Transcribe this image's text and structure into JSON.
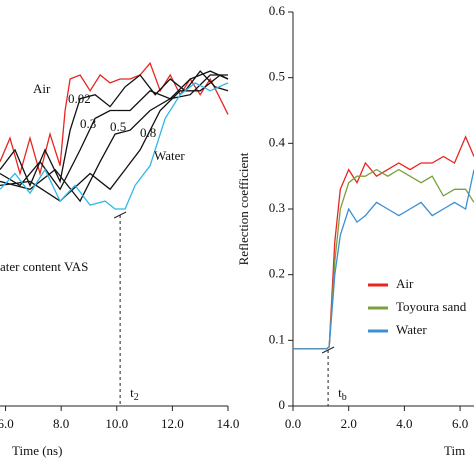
{
  "chart_data": [
    {
      "type": "line",
      "xlabel": "Time (ns)",
      "xlim": [
        5.8,
        14.0
      ],
      "ylim": [
        0,
        1
      ],
      "xticks": [
        {
          "value": 6,
          "label": "6.0"
        },
        {
          "value": 8,
          "label": "8.0"
        },
        {
          "value": 10,
          "label": "10.0"
        },
        {
          "value": 12,
          "label": "12.0"
        },
        {
          "value": 14,
          "label": "14.0"
        }
      ],
      "note": "ater content VAS",
      "marker": {
        "x": 10.12,
        "label": "t",
        "sub": "2"
      },
      "series": [
        {
          "name": "Air",
          "color": "#e8251f",
          "x": [
            5.8,
            6.16,
            6.52,
            6.88,
            7.24,
            7.6,
            7.96,
            8.14,
            8.32,
            8.68,
            9.04,
            9.4,
            9.76,
            10.12,
            10.48,
            10.84,
            11.2,
            11.56,
            11.92,
            12.28,
            12.64,
            13.0,
            13.36,
            13.72,
            14.0
          ],
          "values": [
            0.62,
            0.68,
            0.59,
            0.68,
            0.59,
            0.69,
            0.61,
            0.75,
            0.83,
            0.84,
            0.8,
            0.84,
            0.82,
            0.83,
            0.83,
            0.84,
            0.87,
            0.8,
            0.84,
            0.79,
            0.83,
            0.79,
            0.83,
            0.78,
            0.74
          ]
        },
        {
          "name": "0.02",
          "color": "#111111",
          "x": [
            5.8,
            6.34,
            6.88,
            7.42,
            7.96,
            8.32,
            8.68,
            9.22,
            9.76,
            10.3,
            10.84,
            11.38,
            11.92,
            12.46,
            13.0,
            13.54,
            14.0
          ],
          "values": [
            0.6,
            0.65,
            0.56,
            0.65,
            0.57,
            0.7,
            0.78,
            0.79,
            0.76,
            0.81,
            0.84,
            0.79,
            0.83,
            0.8,
            0.85,
            0.81,
            0.8
          ]
        },
        {
          "name": "0.3",
          "color": "#111111",
          "x": [
            5.8,
            6.52,
            7.24,
            7.96,
            8.68,
            9.22,
            9.76,
            10.48,
            11.2,
            11.92,
            12.64,
            13.36,
            14.0
          ],
          "values": [
            0.59,
            0.56,
            0.62,
            0.55,
            0.65,
            0.73,
            0.75,
            0.75,
            0.8,
            0.78,
            0.83,
            0.85,
            0.83
          ]
        },
        {
          "name": "0.5",
          "color": "#111111",
          "x": [
            5.8,
            6.88,
            7.78,
            8.68,
            9.4,
            9.94,
            10.48,
            11.2,
            11.92,
            12.64,
            13.36,
            14.0
          ],
          "values": [
            0.57,
            0.55,
            0.6,
            0.52,
            0.62,
            0.69,
            0.7,
            0.75,
            0.78,
            0.79,
            0.84,
            0.84
          ]
        },
        {
          "name": "0.8",
          "color": "#111111",
          "x": [
            5.8,
            6.88,
            7.96,
            9.04,
            9.76,
            10.3,
            10.84,
            11.56,
            12.28,
            13.0,
            13.72,
            14.0
          ],
          "values": [
            0.56,
            0.57,
            0.52,
            0.59,
            0.55,
            0.6,
            0.65,
            0.75,
            0.8,
            0.8,
            0.84,
            0.83
          ]
        },
        {
          "name": "Water",
          "color": "#31b7e6",
          "x": [
            5.8,
            6.34,
            6.88,
            7.42,
            7.96,
            8.5,
            9.04,
            9.58,
            9.94,
            10.3,
            10.66,
            11.2,
            11.74,
            12.28,
            12.82,
            13.36,
            14.0
          ],
          "values": [
            0.55,
            0.59,
            0.54,
            0.6,
            0.52,
            0.56,
            0.51,
            0.52,
            0.5,
            0.5,
            0.56,
            0.61,
            0.73,
            0.79,
            0.82,
            0.8,
            0.82
          ]
        }
      ]
    },
    {
      "type": "line",
      "xlabel": "Tim",
      "ylabel": "Reflection coefficient",
      "xlim": [
        0,
        6.5
      ],
      "ylim": [
        0,
        0.6
      ],
      "xticks": [
        {
          "value": 0,
          "label": "0.0"
        },
        {
          "value": 2,
          "label": "2.0"
        },
        {
          "value": 4,
          "label": "4.0"
        },
        {
          "value": 6,
          "label": "6.0"
        }
      ],
      "yticks": [
        0,
        0.1,
        0.2,
        0.3,
        0.4,
        0.5,
        0.6
      ],
      "marker": {
        "x": 1.26,
        "label": "t",
        "sub": "b"
      },
      "series": [
        {
          "name": "Air",
          "color": "#e8251f",
          "x": [
            0,
            1.2,
            1.3,
            1.5,
            1.7,
            2.0,
            2.3,
            2.6,
            3.0,
            3.4,
            3.8,
            4.2,
            4.6,
            5.0,
            5.4,
            5.8,
            6.2,
            6.5
          ],
          "values": [
            0.087,
            0.087,
            0.09,
            0.25,
            0.33,
            0.36,
            0.34,
            0.37,
            0.35,
            0.36,
            0.37,
            0.36,
            0.37,
            0.37,
            0.38,
            0.37,
            0.41,
            0.38
          ]
        },
        {
          "name": "Toyoura sand",
          "color": "#7aa03c",
          "x": [
            0,
            1.2,
            1.3,
            1.5,
            1.7,
            2.0,
            2.3,
            2.6,
            3.0,
            3.4,
            3.8,
            4.2,
            4.6,
            5.0,
            5.4,
            5.8,
            6.2,
            6.5
          ],
          "values": [
            0.087,
            0.087,
            0.09,
            0.22,
            0.3,
            0.34,
            0.35,
            0.35,
            0.36,
            0.35,
            0.36,
            0.35,
            0.34,
            0.35,
            0.32,
            0.33,
            0.33,
            0.31
          ]
        },
        {
          "name": "Water",
          "color": "#3c8fd6",
          "x": [
            0,
            1.2,
            1.3,
            1.5,
            1.7,
            2.0,
            2.3,
            2.6,
            3.0,
            3.4,
            3.8,
            4.2,
            4.6,
            5.0,
            5.4,
            5.8,
            6.2,
            6.5
          ],
          "values": [
            0.087,
            0.087,
            0.09,
            0.2,
            0.26,
            0.3,
            0.28,
            0.29,
            0.31,
            0.3,
            0.29,
            0.3,
            0.31,
            0.29,
            0.3,
            0.31,
            0.3,
            0.36
          ]
        }
      ]
    }
  ]
}
